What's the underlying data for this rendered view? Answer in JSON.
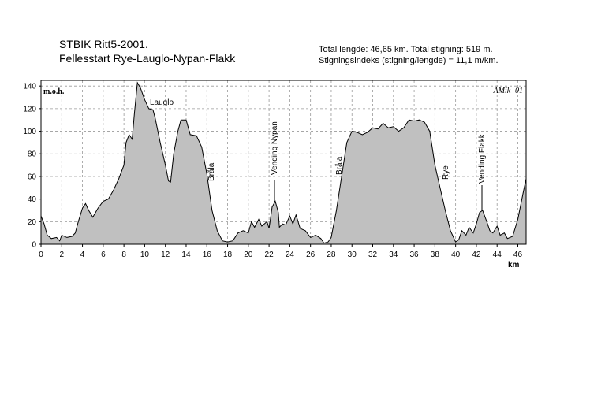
{
  "chart_data": {
    "type": "area",
    "title": "STBIK Ritt5-2001.",
    "subtitle": "Fellesstart Rye-Lauglo-Nypan-Flakk",
    "info": [
      "Total lengde: 46,65 km.  Total stigning:  519 m.",
      "Stigningsindeks (stigning/lengde) = 11,1 m/km."
    ],
    "y_label": "m.o.h.",
    "x_label": "km",
    "signature": "AMik -01",
    "annotations": [
      "Lauglo",
      "Bråla",
      "Vending Nypan",
      "Bråla",
      "Rye",
      "Vending Flakk"
    ],
    "color": "#c0c0c0",
    "grid": true,
    "xlim": [
      0,
      46.8
    ],
    "ylim": [
      0,
      145
    ],
    "xticks": [
      0,
      2,
      4,
      6,
      8,
      10,
      12,
      14,
      16,
      18,
      20,
      22,
      24,
      26,
      28,
      30,
      32,
      34,
      36,
      38,
      40,
      42,
      44,
      46
    ],
    "yticks": [
      0,
      20,
      40,
      60,
      80,
      100,
      120,
      140
    ],
    "x": [
      0,
      0.3,
      0.6,
      1,
      1.5,
      1.8,
      2,
      2.5,
      3,
      3.3,
      3.6,
      4,
      4.3,
      4.6,
      5,
      5.5,
      6,
      6.5,
      7,
      7.5,
      8,
      8.2,
      8.5,
      8.8,
      9,
      9.3,
      9.6,
      10,
      10.4,
      10.8,
      11,
      11.5,
      12,
      12.3,
      12.5,
      12.8,
      13.2,
      13.5,
      14,
      14.4,
      15,
      15.5,
      16,
      16.5,
      17,
      17.5,
      18,
      18.5,
      19,
      19.5,
      20,
      20.3,
      20.6,
      21,
      21.3,
      21.8,
      22,
      22.3,
      22.6,
      22.9,
      23,
      23.3,
      23.6,
      24,
      24.3,
      24.6,
      25,
      25.5,
      26,
      26.5,
      27,
      27.3,
      27.7,
      28,
      28.5,
      29,
      29.5,
      30,
      30.5,
      31,
      31.5,
      32,
      32.5,
      33,
      33.5,
      34,
      34.5,
      35,
      35.5,
      36,
      36.5,
      37,
      37.5,
      38,
      38.5,
      39,
      39.5,
      40,
      40.3,
      40.6,
      41,
      41.3,
      41.7,
      42,
      42.3,
      42.6,
      43,
      43.3,
      43.6,
      44,
      44.3,
      44.7,
      45,
      45.5,
      46,
      46.5,
      46.8
    ],
    "values": [
      25,
      18,
      8,
      5,
      6,
      3,
      8,
      6,
      7,
      10,
      20,
      32,
      36,
      30,
      24,
      32,
      38,
      40,
      48,
      58,
      70,
      90,
      97,
      93,
      115,
      143,
      138,
      128,
      120,
      119,
      112,
      90,
      70,
      56,
      55,
      80,
      100,
      110,
      110,
      97,
      96,
      86,
      62,
      30,
      12,
      3,
      2,
      3,
      10,
      12,
      10,
      20,
      15,
      22,
      16,
      20,
      14,
      33,
      38,
      28,
      15,
      18,
      17,
      25,
      18,
      26,
      14,
      12,
      6,
      8,
      5,
      1,
      2,
      6,
      30,
      60,
      90,
      100,
      99,
      97,
      99,
      103,
      102,
      107,
      103,
      104,
      100,
      103,
      110,
      109,
      110,
      108,
      100,
      70,
      50,
      30,
      12,
      2,
      4,
      12,
      8,
      15,
      10,
      18,
      28,
      30,
      20,
      12,
      10,
      16,
      8,
      10,
      5,
      7,
      22,
      45,
      58
    ]
  }
}
